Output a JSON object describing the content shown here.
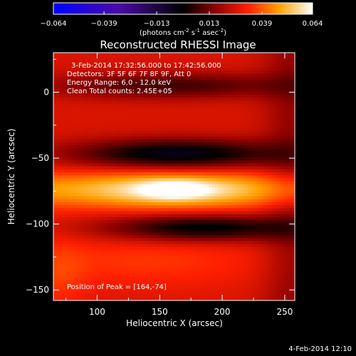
{
  "chart_data": {
    "type": "heatmap",
    "title": "Reconstructed RHESSI Image",
    "xlabel": "Heliocentric X (arcsec)",
    "ylabel": "Heliocentric Y (arcsec)",
    "xlim": [
      65,
      258
    ],
    "ylim": [
      -158,
      30
    ],
    "xticks": [
      100,
      150,
      200,
      250
    ],
    "yticks": [
      0,
      -50,
      -100,
      -150
    ],
    "colorbar": {
      "colormap": "hot-blue",
      "range": [
        -0.064,
        0.064
      ],
      "ticks": [
        "-0.064",
        "-0.039",
        "-0.013",
        "0.013",
        "0.039",
        "0.064"
      ],
      "label": "(photons cm-2 s-1 asec-2)"
    },
    "annotations": [
      "3-Feb-2014 17:32:56.000 to 17:42:56.000",
      "Detectors: 3F 5F 6F 7F 8F 9F, Att 0",
      "Energy Range: 6.0 - 12.0 keV",
      "Clean     Total counts: 2.45E+05"
    ],
    "peak_label": "Position of Peak = [164,-74]",
    "peak": [
      164,
      -74
    ],
    "bands": [
      {
        "y": -74,
        "amplitude": 1.0
      },
      {
        "y": -126,
        "amplitude": 0.38
      },
      {
        "y": -22,
        "amplitude": 0.32
      },
      {
        "y": 18,
        "amplitude": 0.3
      }
    ]
  },
  "footer": {
    "date": "4-Feb-2014 12:10"
  }
}
